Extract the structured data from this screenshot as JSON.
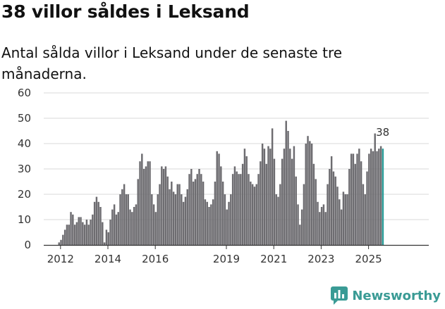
{
  "header": {
    "title": "38 villor såldes i Leksand",
    "subtitle": "Antal sålda villor i Leksand under de senaste tre månaderna."
  },
  "brand": {
    "name": "Newsworthy"
  },
  "colors": {
    "bar": "#6d6c70",
    "highlight": "#2a9d99",
    "grid": "#d9d9d9",
    "axis": "#333333"
  },
  "chart_data": {
    "type": "bar",
    "title": "38 villor såldes i Leksand",
    "xlabel": "",
    "ylabel": "",
    "ylim": [
      0,
      60
    ],
    "yticks": [
      0,
      10,
      20,
      30,
      40,
      50,
      60
    ],
    "xticks": [
      {
        "label": "2012",
        "year": 2012
      },
      {
        "label": "2014",
        "year": 2014
      },
      {
        "label": "2016",
        "year": 2016
      },
      {
        "label": "2019",
        "year": 2019
      },
      {
        "label": "2021",
        "year": 2021
      },
      {
        "label": "2023",
        "year": 2023
      },
      {
        "label": "2025",
        "year": 2025
      }
    ],
    "start": {
      "year": 2011,
      "month": 12
    },
    "annotation": {
      "label": "38",
      "value": 38
    },
    "values": [
      1,
      2,
      4,
      6,
      8,
      8,
      13,
      12,
      8,
      9,
      11,
      11,
      9,
      8,
      10,
      8,
      10,
      12,
      17,
      19,
      17,
      15,
      9,
      1,
      6,
      5,
      10,
      14,
      16,
      12,
      13,
      20,
      22,
      24,
      20,
      20,
      14,
      13,
      15,
      16,
      26,
      33,
      36,
      30,
      31,
      33,
      33,
      20,
      16,
      13,
      20,
      24,
      31,
      30,
      31,
      27,
      22,
      25,
      21,
      20,
      24,
      24,
      20,
      17,
      19,
      22,
      28,
      30,
      25,
      26,
      28,
      30,
      28,
      25,
      18,
      17,
      15,
      16,
      18,
      25,
      37,
      36,
      31,
      25,
      20,
      14,
      17,
      20,
      28,
      31,
      29,
      28,
      28,
      32,
      38,
      35,
      28,
      25,
      24,
      23,
      24,
      28,
      33,
      40,
      38,
      32,
      39,
      38,
      46,
      34,
      20,
      19,
      24,
      34,
      38,
      49,
      45,
      38,
      34,
      39,
      27,
      16,
      8,
      14,
      24,
      40,
      43,
      41,
      40,
      32,
      26,
      17,
      13,
      15,
      16,
      13,
      24,
      30,
      35,
      29,
      27,
      23,
      18,
      14,
      21,
      20,
      20,
      30,
      36,
      36,
      32,
      36,
      38,
      33,
      24,
      20,
      29,
      36,
      38,
      37,
      44,
      37,
      38,
      39,
      38
    ]
  }
}
